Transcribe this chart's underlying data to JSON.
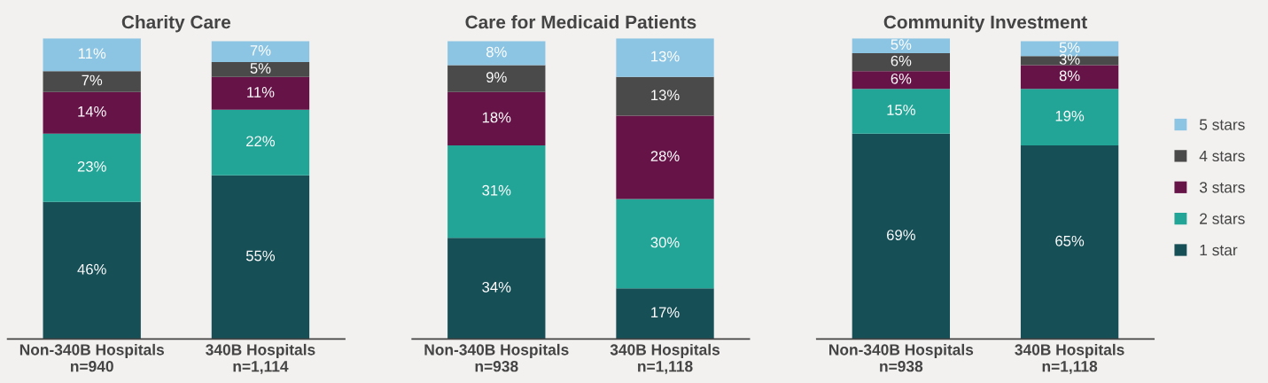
{
  "chart_data": [
    {
      "type": "bar",
      "title": "Charity Care",
      "stacked": true,
      "tick_labels": "x",
      "categories": [
        "Non-340B Hospitals\nn=940",
        "340B Hospitals\nn=1,114"
      ],
      "series": [
        {
          "color": "#174f57",
          "values": [
            46,
            55
          ],
          "value_labels": [
            "46%",
            "55%"
          ]
        },
        {
          "color": "#22a596",
          "values": [
            23,
            22
          ],
          "value_labels": [
            "23%",
            "22%"
          ]
        },
        {
          "color": "#661347",
          "values": [
            14,
            11
          ],
          "value_labels": [
            "14%",
            "11%"
          ]
        },
        {
          "color": "#4a4a4a",
          "values": [
            7,
            5
          ],
          "value_labels": [
            "7%",
            "5%"
          ]
        },
        {
          "color": "#8cc5e3",
          "values": [
            11,
            7
          ],
          "value_labels": [
            "11%",
            "7%"
          ]
        }
      ]
    },
    {
      "type": "bar",
      "title": "Care for Medicaid Patients",
      "stacked": true,
      "tick_labels": "x",
      "categories": [
        "Non-340B Hospitals\nn=938",
        "340B Hospitals\nn=1,118"
      ],
      "series": [
        {
          "color": "#174f57",
          "values": [
            34,
            17
          ],
          "value_labels": [
            "34%",
            "17%"
          ]
        },
        {
          "color": "#22a596",
          "values": [
            31,
            30
          ],
          "value_labels": [
            "31%",
            "30%"
          ]
        },
        {
          "color": "#661347",
          "values": [
            18,
            28
          ],
          "value_labels": [
            "18%",
            "28%"
          ]
        },
        {
          "color": "#4a4a4a",
          "values": [
            9,
            13
          ],
          "value_labels": [
            "9%",
            "13%"
          ]
        },
        {
          "color": "#8cc5e3",
          "values": [
            8,
            13
          ],
          "value_labels": [
            "8%",
            "13%"
          ]
        }
      ]
    },
    {
      "type": "bar",
      "title": "Community Investment",
      "stacked": true,
      "legend": "right",
      "tick_labels": "x",
      "categories": [
        "Non-340B Hospitals\nn=938",
        "340B Hospitals\nn=1,118"
      ],
      "series": [
        {
          "name": "1 star",
          "color": "#174f57",
          "values": [
            69,
            65
          ],
          "value_labels": [
            "69%",
            "65%"
          ]
        },
        {
          "name": "2 stars",
          "color": "#22a596",
          "values": [
            15,
            19
          ],
          "value_labels": [
            "15%",
            "19%"
          ]
        },
        {
          "name": "3 stars",
          "color": "#661347",
          "values": [
            6,
            8
          ],
          "value_labels": [
            "6%",
            "8%"
          ]
        },
        {
          "name": "4 stars",
          "color": "#4a4a4a",
          "values": [
            6,
            3
          ],
          "value_labels": [
            "6%",
            "3%"
          ]
        },
        {
          "name": "5 stars",
          "color": "#8cc5e3",
          "values": [
            5,
            5
          ],
          "value_labels": [
            "5%",
            "5%"
          ]
        }
      ]
    }
  ]
}
